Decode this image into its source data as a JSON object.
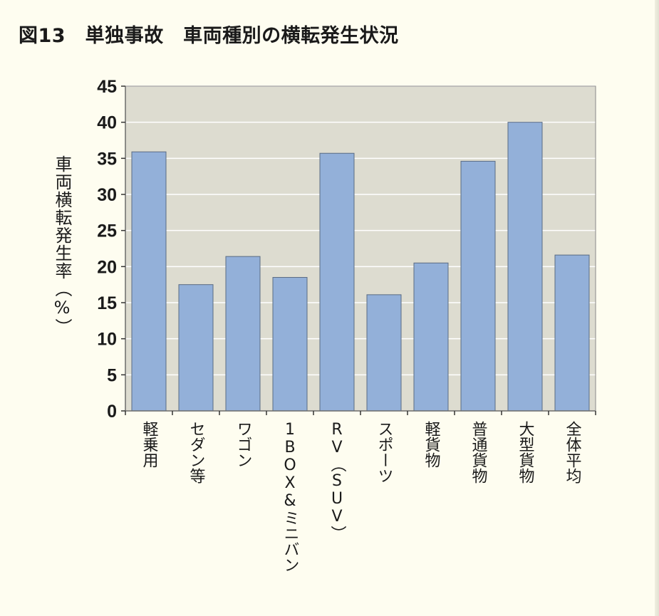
{
  "title": "図13　単独事故　車両種別の横転発生状況",
  "chart_data": {
    "type": "bar",
    "ylabel": "車両横転発生率（%）",
    "categories": [
      "軽乗用",
      "セダン等",
      "ワゴン",
      "1BOX&ミニバン",
      "RV（SUV）",
      "スポーツ",
      "軽貨物",
      "普通貨物",
      "大型貨物",
      "全体平均"
    ],
    "values": [
      35.9,
      17.5,
      21.4,
      18.5,
      35.7,
      16.1,
      20.5,
      34.6,
      40.0,
      21.6
    ],
    "ylim": [
      0,
      45
    ],
    "yticks": [
      0,
      5,
      10,
      15,
      20,
      25,
      30,
      35,
      40,
      45
    ],
    "grid": true,
    "colors": {
      "bar": "#93b0d9",
      "bar_edge": "#5a6b82",
      "plot_bg": "#dddcd0",
      "grid": "#ffffff",
      "axis": "#333333"
    }
  }
}
